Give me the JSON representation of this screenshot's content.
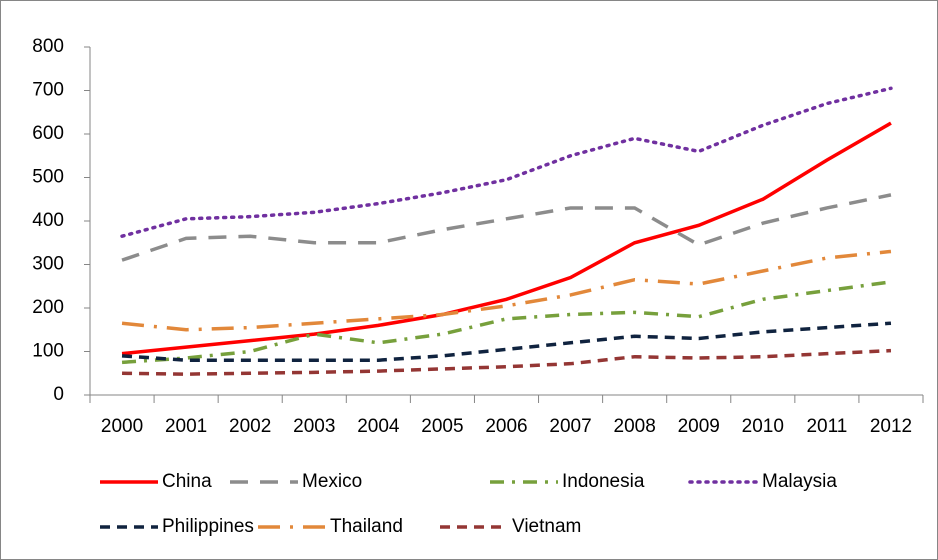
{
  "chart_data": {
    "type": "line",
    "categories": [
      "2000",
      "2001",
      "2002",
      "2003",
      "2004",
      "2005",
      "2006",
      "2007",
      "2008",
      "2009",
      "2010",
      "2011",
      "2012"
    ],
    "series": [
      {
        "name": "China",
        "color": "#ff0000",
        "values": [
          95,
          110,
          125,
          140,
          160,
          185,
          220,
          270,
          350,
          390,
          450,
          540,
          625
        ]
      },
      {
        "name": "Mexico",
        "color": "#8c8c8c",
        "values": [
          310,
          360,
          365,
          350,
          350,
          380,
          405,
          430,
          430,
          345,
          395,
          430,
          460
        ]
      },
      {
        "name": "Indonesia",
        "color": "#77a03c",
        "values": [
          75,
          85,
          100,
          140,
          120,
          140,
          175,
          185,
          190,
          180,
          220,
          240,
          260
        ]
      },
      {
        "name": "Malaysia",
        "color": "#7030a0",
        "values": [
          365,
          405,
          410,
          420,
          440,
          465,
          495,
          550,
          590,
          560,
          620,
          670,
          705
        ]
      },
      {
        "name": "Philippines",
        "color": "#10233f",
        "values": [
          90,
          80,
          80,
          80,
          80,
          90,
          105,
          120,
          135,
          130,
          145,
          155,
          165
        ]
      },
      {
        "name": "Thailand",
        "color": "#e2883a",
        "values": [
          165,
          150,
          155,
          165,
          175,
          185,
          205,
          230,
          265,
          255,
          285,
          315,
          330
        ]
      },
      {
        "name": "Vietnam",
        "color": "#943634",
        "values": [
          50,
          48,
          50,
          52,
          55,
          60,
          65,
          72,
          88,
          85,
          88,
          95,
          102
        ]
      }
    ],
    "ylim": [
      0,
      800
    ],
    "yticks": [
      0,
      100,
      200,
      300,
      400,
      500,
      600,
      700,
      800
    ],
    "grid": false,
    "legend": "bottom"
  }
}
